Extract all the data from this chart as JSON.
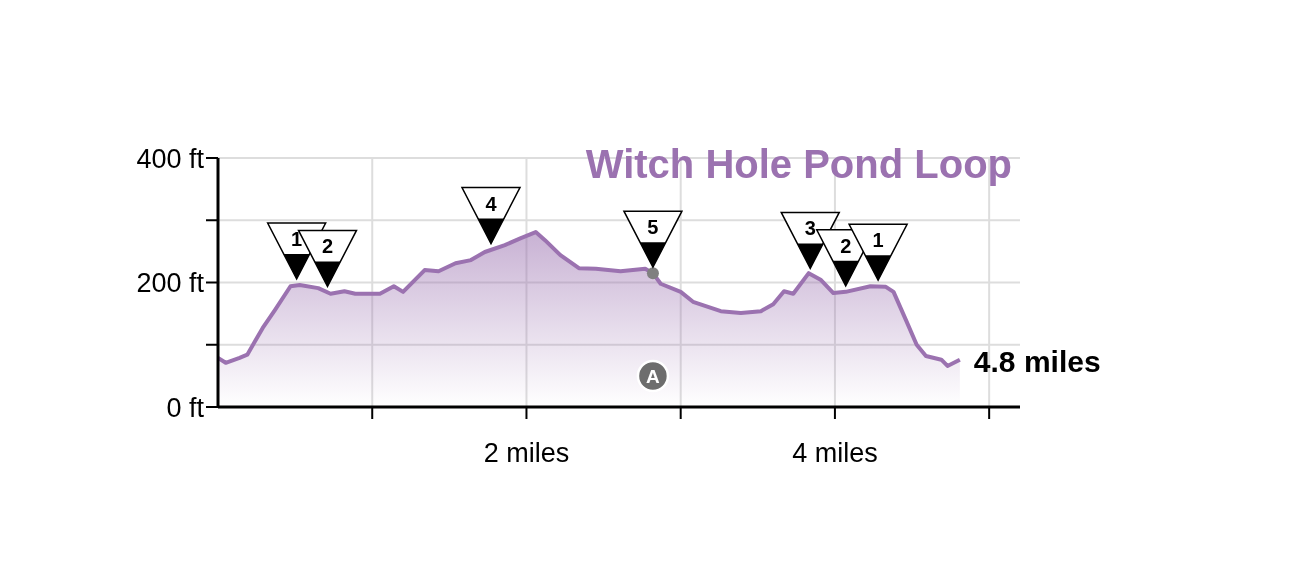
{
  "chart_data": {
    "type": "area",
    "title": "Witch Hole Pond Loop",
    "series": [
      {
        "color": "#9b72b0",
        "x": [
          0,
          0.05,
          0.14,
          0.19,
          0.29,
          0.37,
          0.47,
          0.53,
          0.65,
          0.73,
          0.82,
          0.89,
          1.05,
          1.14,
          1.2,
          1.34,
          1.43,
          1.54,
          1.64,
          1.73,
          1.86,
          1.96,
          2.06,
          2.12,
          2.22,
          2.34,
          2.45,
          2.61,
          2.77,
          2.82,
          2.87,
          3.0,
          3.08,
          3.26,
          3.39,
          3.52,
          3.6,
          3.67,
          3.73,
          3.83,
          3.91,
          3.99,
          4.07,
          4.23,
          4.33,
          4.38,
          4.46,
          4.53,
          4.59,
          4.69,
          4.73,
          4.81
        ],
        "values": [
          79,
          71,
          79,
          84,
          127,
          156,
          194,
          196,
          191,
          182,
          186,
          182,
          182,
          194,
          185,
          220,
          218,
          231,
          236,
          249,
          260,
          271,
          281,
          268,
          244,
          223,
          222,
          218,
          222,
          215,
          198,
          185,
          169,
          154,
          151,
          154,
          165,
          186,
          182,
          215,
          204,
          183,
          185,
          194,
          193,
          185,
          140,
          100,
          82,
          76,
          66,
          76
        ]
      },
      {
        "type": "scatter",
        "color": "#808080",
        "x": [
          2.82
        ],
        "values": [
          215
        ]
      }
    ],
    "xlim": [
      0,
      5.2
    ],
    "xticks": [
      {
        "value": 1,
        "label": null
      },
      {
        "value": 2,
        "label": "2 miles"
      },
      {
        "value": 3,
        "label": null
      },
      {
        "value": 4,
        "label": "4 miles"
      },
      {
        "value": 5,
        "label": null
      }
    ],
    "ylim": [
      0,
      400
    ],
    "yticks": [
      {
        "value": 0,
        "label": "0 ft"
      },
      {
        "value": 100,
        "label": null
      },
      {
        "value": 200,
        "label": "200 ft"
      },
      {
        "value": 300,
        "label": null
      },
      {
        "value": 400,
        "label": "400 ft"
      }
    ],
    "grid": true,
    "legend": false,
    "annotations": [
      {
        "text": "1",
        "x": 0.51,
        "y": 196
      },
      {
        "text": "2",
        "x": 0.71,
        "y": 184
      },
      {
        "text": "4",
        "x": 1.77,
        "y": 253
      },
      {
        "text": "5",
        "x": 2.82,
        "y": 215
      },
      {
        "text": "3",
        "x": 3.84,
        "y": 213
      },
      {
        "text": "2",
        "x": 4.07,
        "y": 185
      },
      {
        "text": "1",
        "x": 4.28,
        "y": 194
      },
      "A",
      "4.8 miles"
    ]
  }
}
